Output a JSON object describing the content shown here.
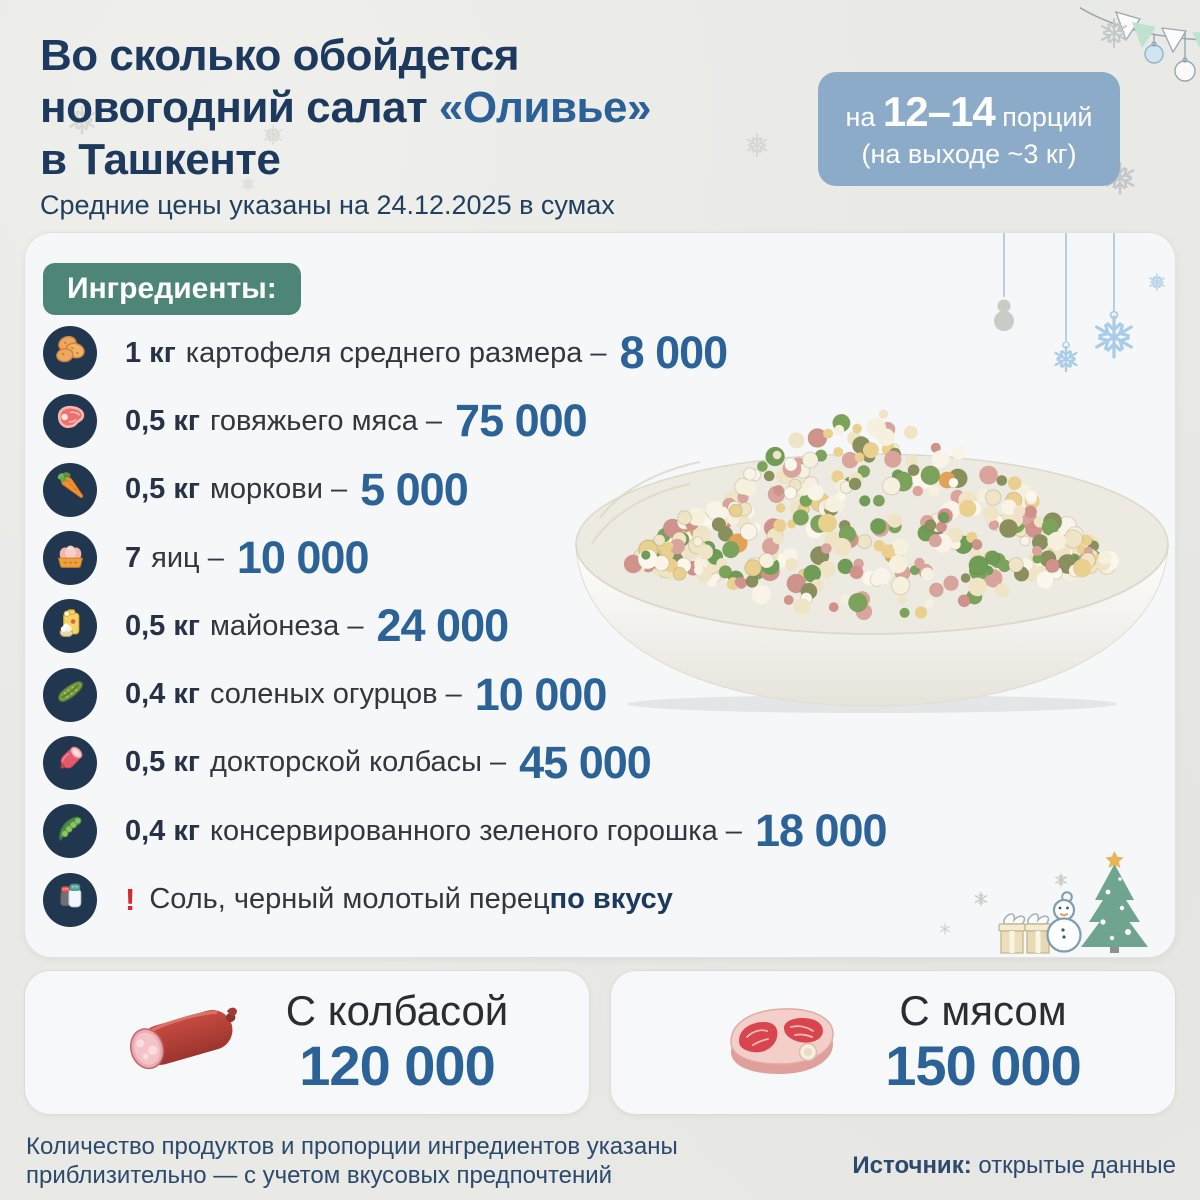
{
  "header": {
    "title_line1": "Во сколько обойдется",
    "title_line2_prefix": "новогодний салат ",
    "title_line2_highlight": "«Оливье»",
    "title_line3": "в Ташкенте",
    "subtitle": "Средние цены указаны на 24.12.2025 в сумах",
    "badge": {
      "prefix": "на ",
      "portions": "12–14",
      "suffix": " порций",
      "line2": "(на выходе ~3 кг)"
    }
  },
  "ingredients": {
    "header_label": "Ингредиенты:",
    "items": [
      {
        "icon": "potato-icon",
        "qty": "1 кг",
        "name": "картофеля среднего размера –",
        "price": "8 000"
      },
      {
        "icon": "beef-icon",
        "qty": "0,5 кг",
        "name": "говяжьего мяса –",
        "price": "75 000"
      },
      {
        "icon": "carrot-icon",
        "qty": "0,5 кг",
        "name": "моркови –",
        "price": "5 000"
      },
      {
        "icon": "eggs-icon",
        "qty": "7",
        "name": "яиц –",
        "price": "10 000"
      },
      {
        "icon": "mayo-icon",
        "qty": "0,5 кг",
        "name": "майонеза –",
        "price": "24 000"
      },
      {
        "icon": "pickle-icon",
        "qty": "0,4 кг",
        "name": "соленых огурцов –",
        "price": "10 000"
      },
      {
        "icon": "sausage-icon",
        "qty": "0,5 кг",
        "name": "докторской колбасы –",
        "price": "45 000"
      },
      {
        "icon": "peas-icon",
        "qty": "0,4 кг",
        "name": "консервированного зеленого горошка –",
        "price": "18 000"
      }
    ],
    "note": {
      "icon": "salt-pepper-icon",
      "warn_mark": "!",
      "text": "Соль, черный молотый перец ",
      "emphasis": "по вкусу"
    }
  },
  "totals": [
    {
      "icon": "sausage-image",
      "label": "С колбасой",
      "price": "120 000"
    },
    {
      "icon": "steak-image",
      "label": "С мясом",
      "price": "150 000"
    }
  ],
  "footer": {
    "note_line1": "Количество продуктов и пропорции ингредиентов указаны",
    "note_line2": "приблизительно — с учетом вкусовых предпочтений",
    "source_label": "Источник:",
    "source_value": " открытые данные"
  },
  "colors": {
    "title_navy": "#1d3a5e",
    "highlight_blue": "#2c6197",
    "price_blue": "#2b6298",
    "badge_bg": "#8cabc8",
    "ingredients_pill_green": "#4d8678",
    "icon_circle_navy": "#213750",
    "warn_red": "#d7282f",
    "card_bg": "#f6f7f8",
    "page_bg": "#e9e9e6"
  }
}
